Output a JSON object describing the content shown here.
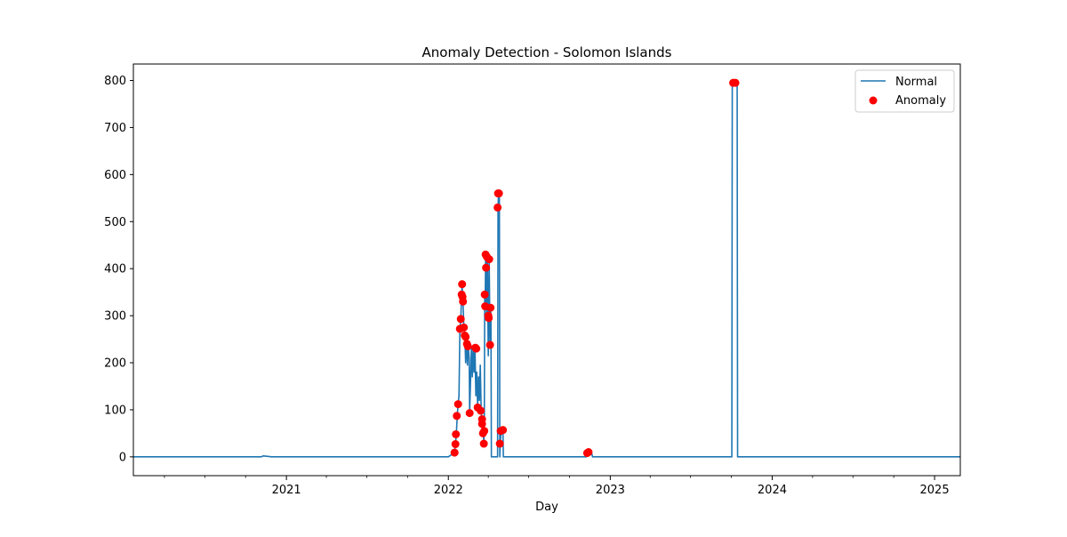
{
  "chart_data": {
    "type": "line",
    "title": "Anomaly Detection - Solomon Islands",
    "xlabel": "Day",
    "ylabel": "",
    "x_range": [
      "2020-01-22",
      "2025-02-28"
    ],
    "ylim": [
      -40,
      835
    ],
    "x_ticks": [
      {
        "label": "2021",
        "date": "2021-01-01"
      },
      {
        "label": "2022",
        "date": "2022-01-01"
      },
      {
        "label": "2023",
        "date": "2023-01-01"
      },
      {
        "label": "2024",
        "date": "2024-01-01"
      },
      {
        "label": "2025",
        "date": "2025-01-01"
      }
    ],
    "y_ticks": [
      0,
      100,
      200,
      300,
      400,
      500,
      600,
      700,
      800
    ],
    "grid": false,
    "legend": {
      "position": "top-right",
      "entries": [
        "Normal",
        "Anomaly"
      ]
    },
    "colors": {
      "normal": "#1f77b4",
      "anomaly": "#ff0000"
    },
    "series": [
      {
        "name": "Normal",
        "kind": "line",
        "points": [
          [
            "2020-01-22",
            0
          ],
          [
            "2020-11-05",
            0
          ],
          [
            "2020-11-10",
            2
          ],
          [
            "2020-11-20",
            1
          ],
          [
            "2020-11-28",
            0
          ],
          [
            "2022-01-01",
            0
          ],
          [
            "2022-01-15",
            9
          ],
          [
            "2022-01-17",
            27
          ],
          [
            "2022-01-19",
            48
          ],
          [
            "2022-01-21",
            87
          ],
          [
            "2022-01-23",
            112
          ],
          [
            "2022-01-25",
            130
          ],
          [
            "2022-01-27",
            272
          ],
          [
            "2022-01-29",
            293
          ],
          [
            "2022-01-31",
            345
          ],
          [
            "2022-02-01",
            367
          ],
          [
            "2022-02-02",
            340
          ],
          [
            "2022-02-03",
            330
          ],
          [
            "2022-02-05",
            275
          ],
          [
            "2022-02-07",
            260
          ],
          [
            "2022-02-09",
            200
          ],
          [
            "2022-02-11",
            255
          ],
          [
            "2022-02-13",
            195
          ],
          [
            "2022-02-15",
            235
          ],
          [
            "2022-02-17",
            210
          ],
          [
            "2022-02-18",
            93
          ],
          [
            "2022-02-20",
            160
          ],
          [
            "2022-02-22",
            235
          ],
          [
            "2022-02-24",
            170
          ],
          [
            "2022-02-26",
            230
          ],
          [
            "2022-02-28",
            180
          ],
          [
            "2022-03-02",
            232
          ],
          [
            "2022-03-04",
            130
          ],
          [
            "2022-03-06",
            180
          ],
          [
            "2022-03-08",
            105
          ],
          [
            "2022-03-10",
            170
          ],
          [
            "2022-03-12",
            120
          ],
          [
            "2022-03-14",
            195
          ],
          [
            "2022-03-16",
            98
          ],
          [
            "2022-03-18",
            70
          ],
          [
            "2022-03-19",
            50
          ],
          [
            "2022-03-20",
            80
          ],
          [
            "2022-03-22",
            28
          ],
          [
            "2022-03-23",
            55
          ],
          [
            "2022-03-24",
            345
          ],
          [
            "2022-03-25",
            320
          ],
          [
            "2022-03-26",
            430
          ],
          [
            "2022-03-27",
            402
          ],
          [
            "2022-03-28",
            300
          ],
          [
            "2022-03-30",
            425
          ],
          [
            "2022-04-01",
            215
          ],
          [
            "2022-04-02",
            295
          ],
          [
            "2022-04-03",
            420
          ],
          [
            "2022-04-05",
            238
          ],
          [
            "2022-04-06",
            317
          ],
          [
            "2022-04-07",
            300
          ],
          [
            "2022-04-08",
            0
          ],
          [
            "2022-04-22",
            0
          ],
          [
            "2022-04-23",
            530
          ],
          [
            "2022-04-24",
            560
          ],
          [
            "2022-04-26",
            560
          ],
          [
            "2022-04-27",
            0
          ],
          [
            "2022-04-28",
            28
          ],
          [
            "2022-04-30",
            55
          ],
          [
            "2022-05-04",
            57
          ],
          [
            "2022-05-05",
            0
          ],
          [
            "2022-11-08",
            0
          ],
          [
            "2022-11-10",
            8
          ],
          [
            "2022-11-12",
            10
          ],
          [
            "2022-11-20",
            8
          ],
          [
            "2022-11-22",
            0
          ],
          [
            "2023-10-02",
            0
          ],
          [
            "2023-10-03",
            795
          ],
          [
            "2023-10-14",
            795
          ],
          [
            "2023-10-15",
            0
          ],
          [
            "2025-02-28",
            0
          ]
        ]
      },
      {
        "name": "Anomaly",
        "kind": "scatter",
        "points": [
          [
            "2022-01-15",
            9
          ],
          [
            "2022-01-17",
            27
          ],
          [
            "2022-01-18",
            48
          ],
          [
            "2022-01-20",
            87
          ],
          [
            "2022-01-23",
            112
          ],
          [
            "2022-01-27",
            272
          ],
          [
            "2022-01-29",
            293
          ],
          [
            "2022-01-31",
            345
          ],
          [
            "2022-02-01",
            367
          ],
          [
            "2022-02-02",
            340
          ],
          [
            "2022-02-03",
            330
          ],
          [
            "2022-02-05",
            275
          ],
          [
            "2022-02-07",
            258
          ],
          [
            "2022-02-09",
            255
          ],
          [
            "2022-02-12",
            240
          ],
          [
            "2022-02-14",
            235
          ],
          [
            "2022-02-18",
            93
          ],
          [
            "2022-03-03",
            232
          ],
          [
            "2022-03-05",
            230
          ],
          [
            "2022-03-08",
            105
          ],
          [
            "2022-03-15",
            98
          ],
          [
            "2022-03-18",
            80
          ],
          [
            "2022-03-18",
            70
          ],
          [
            "2022-03-20",
            50
          ],
          [
            "2022-03-22",
            28
          ],
          [
            "2022-03-23",
            55
          ],
          [
            "2022-03-24",
            345
          ],
          [
            "2022-03-25",
            320
          ],
          [
            "2022-03-26",
            430
          ],
          [
            "2022-03-27",
            402
          ],
          [
            "2022-03-29",
            425
          ],
          [
            "2022-04-01",
            300
          ],
          [
            "2022-04-02",
            295
          ],
          [
            "2022-04-03",
            420
          ],
          [
            "2022-04-05",
            238
          ],
          [
            "2022-04-06",
            317
          ],
          [
            "2022-04-22",
            530
          ],
          [
            "2022-04-23",
            560
          ],
          [
            "2022-04-25",
            560
          ],
          [
            "2022-04-27",
            28
          ],
          [
            "2022-04-29",
            55
          ],
          [
            "2022-05-04",
            57
          ],
          [
            "2022-11-10",
            8
          ],
          [
            "2022-11-13",
            10
          ],
          [
            "2023-10-05",
            795
          ],
          [
            "2023-10-10",
            795
          ]
        ]
      }
    ]
  }
}
